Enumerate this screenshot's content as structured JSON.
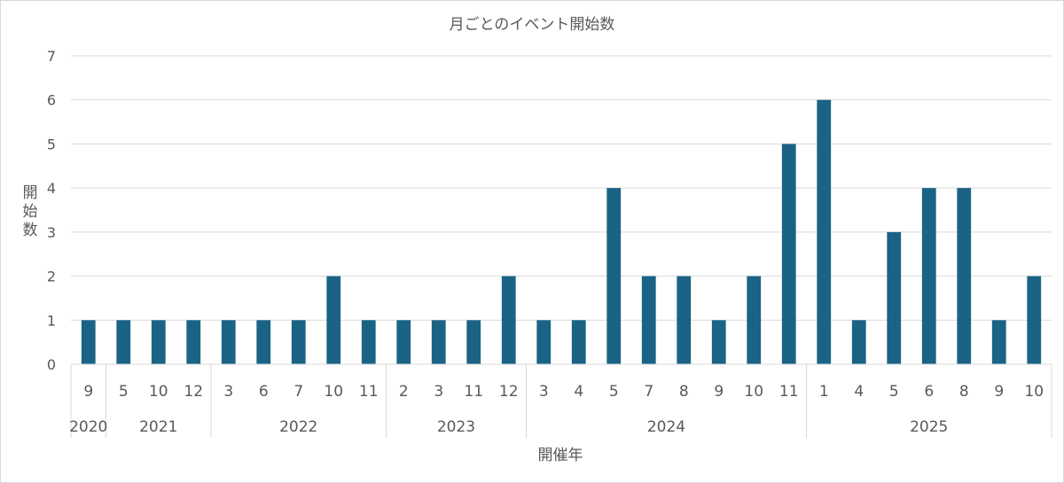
{
  "chart_data": {
    "type": "bar",
    "title": "月ごとのイベント開始数",
    "xlabel": "開催年",
    "ylabel": "開始数",
    "ylim": [
      0,
      7
    ],
    "yticks": [
      "0",
      "1",
      "2",
      "3",
      "4",
      "5",
      "6",
      "7"
    ],
    "grid": true,
    "legend": "none",
    "bar_color": "#1b6385",
    "groups": [
      {
        "year": "2020",
        "months": [
          "9"
        ],
        "values": [
          1
        ]
      },
      {
        "year": "2021",
        "months": [
          "5",
          "10",
          "12"
        ],
        "values": [
          1,
          1,
          1
        ]
      },
      {
        "year": "2022",
        "months": [
          "3",
          "6",
          "7",
          "10",
          "11"
        ],
        "values": [
          1,
          1,
          1,
          2,
          1
        ]
      },
      {
        "year": "2023",
        "months": [
          "2",
          "3",
          "11",
          "12"
        ],
        "values": [
          1,
          1,
          1,
          2
        ]
      },
      {
        "year": "2024",
        "months": [
          "3",
          "4",
          "5",
          "7",
          "8",
          "9",
          "10",
          "11"
        ],
        "values": [
          1,
          1,
          4,
          2,
          2,
          1,
          2,
          5
        ]
      },
      {
        "year": "2025",
        "months": [
          "1",
          "4",
          "5",
          "6",
          "8",
          "9",
          "10"
        ],
        "values": [
          6,
          1,
          3,
          4,
          4,
          1,
          2
        ]
      }
    ]
  }
}
